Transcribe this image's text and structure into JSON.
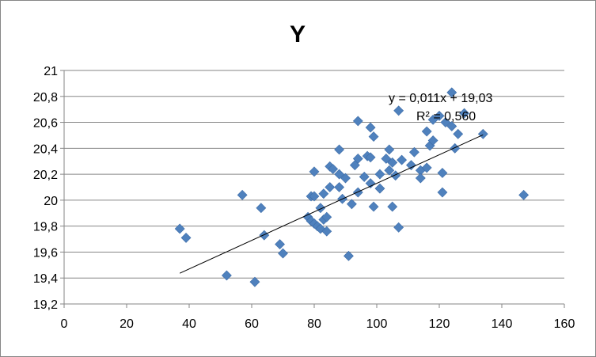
{
  "chart_data": {
    "type": "scatter",
    "title": "Y",
    "xlim": [
      0,
      160
    ],
    "ylim": [
      19.2,
      21
    ],
    "x_ticks": [
      "0",
      "20",
      "40",
      "60",
      "80",
      "100",
      "120",
      "140",
      "160"
    ],
    "y_ticks": [
      "19,2",
      "19,4",
      "19,6",
      "19,8",
      "20",
      "20,2",
      "20,4",
      "20,6",
      "20,8",
      "21"
    ],
    "grid": "horizontal",
    "marker_color": "#4F81BD",
    "trendline": {
      "slope": 0.011,
      "intercept": 19.03,
      "x_range": [
        37,
        134
      ],
      "equation": "y = 0,011x + 19,03",
      "r_squared": "R² = 0,560"
    },
    "points": [
      {
        "x": 37,
        "y": 19.78
      },
      {
        "x": 39,
        "y": 19.71
      },
      {
        "x": 52,
        "y": 19.42
      },
      {
        "x": 57,
        "y": 20.04
      },
      {
        "x": 61,
        "y": 19.37
      },
      {
        "x": 63,
        "y": 19.94
      },
      {
        "x": 64,
        "y": 19.73
      },
      {
        "x": 69,
        "y": 19.66
      },
      {
        "x": 70,
        "y": 19.59
      },
      {
        "x": 78,
        "y": 19.87
      },
      {
        "x": 79,
        "y": 20.03
      },
      {
        "x": 79,
        "y": 19.84
      },
      {
        "x": 80,
        "y": 20.22
      },
      {
        "x": 80,
        "y": 20.03
      },
      {
        "x": 80,
        "y": 19.82
      },
      {
        "x": 81,
        "y": 19.8
      },
      {
        "x": 82,
        "y": 19.94
      },
      {
        "x": 82,
        "y": 19.78
      },
      {
        "x": 83,
        "y": 20.05
      },
      {
        "x": 83,
        "y": 19.85
      },
      {
        "x": 84,
        "y": 19.87
      },
      {
        "x": 84,
        "y": 19.76
      },
      {
        "x": 85,
        "y": 20.26
      },
      {
        "x": 85,
        "y": 20.1
      },
      {
        "x": 86,
        "y": 20.24
      },
      {
        "x": 88,
        "y": 20.39
      },
      {
        "x": 88,
        "y": 20.2
      },
      {
        "x": 88,
        "y": 20.1
      },
      {
        "x": 89,
        "y": 20.01
      },
      {
        "x": 90,
        "y": 20.17
      },
      {
        "x": 91,
        "y": 19.57
      },
      {
        "x": 92,
        "y": 19.97
      },
      {
        "x": 93,
        "y": 20.27
      },
      {
        "x": 94,
        "y": 20.61
      },
      {
        "x": 94,
        "y": 20.32
      },
      {
        "x": 94,
        "y": 20.06
      },
      {
        "x": 96,
        "y": 20.18
      },
      {
        "x": 97,
        "y": 20.34
      },
      {
        "x": 98,
        "y": 20.56
      },
      {
        "x": 98,
        "y": 20.33
      },
      {
        "x": 98,
        "y": 20.13
      },
      {
        "x": 99,
        "y": 20.49
      },
      {
        "x": 99,
        "y": 19.95
      },
      {
        "x": 101,
        "y": 20.2
      },
      {
        "x": 101,
        "y": 20.09
      },
      {
        "x": 103,
        "y": 20.32
      },
      {
        "x": 104,
        "y": 20.39
      },
      {
        "x": 104,
        "y": 20.23
      },
      {
        "x": 105,
        "y": 20.29
      },
      {
        "x": 105,
        "y": 19.95
      },
      {
        "x": 106,
        "y": 20.19
      },
      {
        "x": 107,
        "y": 20.69
      },
      {
        "x": 107,
        "y": 19.79
      },
      {
        "x": 108,
        "y": 20.31
      },
      {
        "x": 111,
        "y": 20.27
      },
      {
        "x": 112,
        "y": 20.37
      },
      {
        "x": 114,
        "y": 20.23
      },
      {
        "x": 114,
        "y": 20.17
      },
      {
        "x": 116,
        "y": 20.53
      },
      {
        "x": 116,
        "y": 20.25
      },
      {
        "x": 117,
        "y": 20.42
      },
      {
        "x": 118,
        "y": 20.46
      },
      {
        "x": 118,
        "y": 20.62
      },
      {
        "x": 120,
        "y": 20.65
      },
      {
        "x": 121,
        "y": 20.21
      },
      {
        "x": 121,
        "y": 20.06
      },
      {
        "x": 122,
        "y": 20.6
      },
      {
        "x": 124,
        "y": 20.83
      },
      {
        "x": 124,
        "y": 20.57
      },
      {
        "x": 125,
        "y": 20.4
      },
      {
        "x": 126,
        "y": 20.51
      },
      {
        "x": 128,
        "y": 20.67
      },
      {
        "x": 134,
        "y": 20.51
      },
      {
        "x": 147,
        "y": 20.04
      }
    ]
  }
}
